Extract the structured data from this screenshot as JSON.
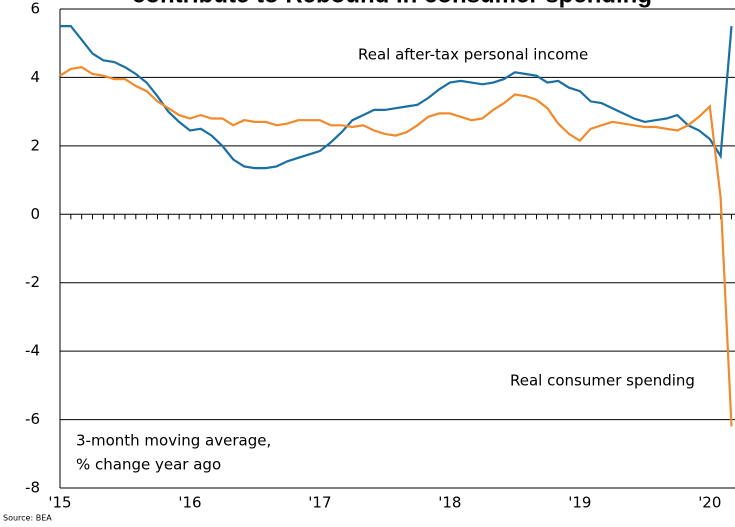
{
  "chart_data": {
    "type": "line",
    "title": "contribute to Rebound in consumer spending",
    "annotations": [
      "Real after-tax personal income",
      "Real consumer spending",
      "3-month moving average,",
      "% change year ago"
    ],
    "source": "Source: BEA",
    "categories": [
      "'15",
      null,
      null,
      null,
      null,
      null,
      null,
      null,
      null,
      null,
      null,
      null,
      "'16",
      null,
      null,
      null,
      null,
      null,
      null,
      null,
      null,
      null,
      null,
      null,
      "'17",
      null,
      null,
      null,
      null,
      null,
      null,
      null,
      null,
      null,
      null,
      null,
      "'18",
      null,
      null,
      null,
      null,
      null,
      null,
      null,
      null,
      null,
      null,
      null,
      "'19",
      null,
      null,
      null,
      null,
      null,
      null,
      null,
      null,
      null,
      null,
      null,
      "'20",
      null,
      null
    ],
    "series": [
      {
        "name": "Real after-tax personal income",
        "color": "#1a6fa3",
        "values": [
          5.5,
          5.5,
          5.1,
          4.7,
          4.5,
          4.45,
          4.3,
          4.1,
          3.85,
          3.45,
          3.0,
          2.7,
          2.45,
          2.5,
          2.3,
          2.0,
          1.6,
          1.4,
          1.35,
          1.35,
          1.4,
          1.55,
          1.65,
          1.75,
          1.85,
          2.1,
          2.4,
          2.75,
          2.9,
          3.05,
          3.05,
          3.1,
          3.15,
          3.2,
          3.4,
          3.65,
          3.85,
          3.9,
          3.85,
          3.8,
          3.85,
          3.95,
          4.15,
          4.1,
          4.05,
          3.85,
          3.9,
          3.7,
          3.6,
          3.3,
          3.25,
          3.1,
          2.95,
          2.8,
          2.7,
          2.75,
          2.8,
          2.9,
          2.6,
          2.45,
          2.2,
          1.7,
          5.5
        ]
      },
      {
        "name": "Real consumer spending",
        "color": "#f08a2c",
        "values": [
          4.05,
          4.25,
          4.3,
          4.1,
          4.05,
          3.95,
          3.95,
          3.75,
          3.6,
          3.3,
          3.1,
          2.9,
          2.8,
          2.9,
          2.8,
          2.8,
          2.6,
          2.75,
          2.7,
          2.7,
          2.6,
          2.65,
          2.75,
          2.75,
          2.75,
          2.6,
          2.6,
          2.55,
          2.6,
          2.45,
          2.35,
          2.3,
          2.4,
          2.6,
          2.85,
          2.95,
          2.95,
          2.85,
          2.75,
          2.8,
          3.05,
          3.25,
          3.5,
          3.45,
          3.35,
          3.1,
          2.65,
          2.35,
          2.15,
          2.5,
          2.6,
          2.7,
          2.65,
          2.6,
          2.55,
          2.55,
          2.5,
          2.45,
          2.6,
          2.85,
          3.15,
          0.5,
          -6.2
        ]
      }
    ],
    "ylim": [
      -8,
      6
    ],
    "yticks": [
      -8,
      -6,
      -4,
      -2,
      0,
      2,
      4,
      6
    ],
    "grid": true
  }
}
